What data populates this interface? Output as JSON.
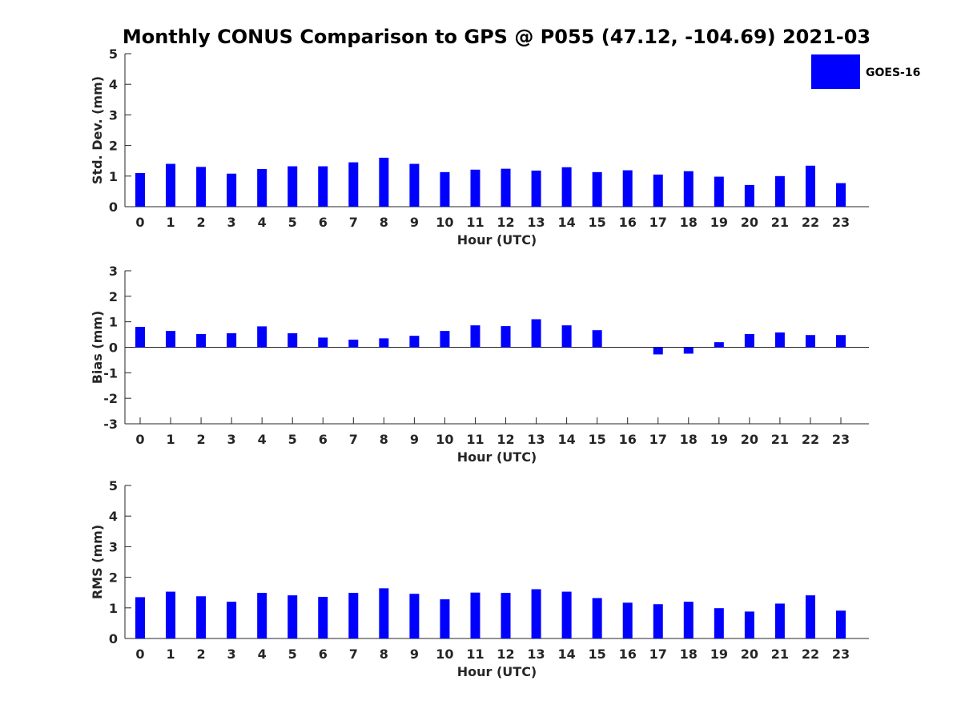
{
  "chart_data": {
    "type": "bar",
    "title": "Monthly CONUS Comparison to GPS @ P055 (47.12, -104.69) 2021-03",
    "bar_color": "#0000ff",
    "legend": {
      "label": "GOES-16",
      "placement": "top-right"
    },
    "categories": [
      "0",
      "1",
      "2",
      "3",
      "4",
      "5",
      "6",
      "7",
      "8",
      "9",
      "10",
      "11",
      "12",
      "13",
      "14",
      "15",
      "16",
      "17",
      "18",
      "19",
      "20",
      "21",
      "22",
      "23"
    ],
    "panels": [
      {
        "id": "stddev",
        "xlabel": "Hour (UTC)",
        "ylabel": "Std. Dev. (mm)",
        "ylim": [
          0,
          5
        ],
        "yticks": [
          0,
          1,
          2,
          3,
          4,
          5
        ],
        "values": [
          1.1,
          1.4,
          1.3,
          1.08,
          1.23,
          1.32,
          1.32,
          1.45,
          1.6,
          1.4,
          1.13,
          1.21,
          1.24,
          1.18,
          1.29,
          1.13,
          1.19,
          1.05,
          1.16,
          0.98,
          0.71,
          1.0,
          1.34,
          0.77
        ]
      },
      {
        "id": "bias",
        "xlabel": "Hour (UTC)",
        "ylabel": "Bias (mm)",
        "ylim": [
          -3,
          3
        ],
        "yticks": [
          -3,
          -2,
          -1,
          0,
          1,
          2,
          3
        ],
        "values": [
          0.8,
          0.64,
          0.52,
          0.55,
          0.82,
          0.55,
          0.38,
          0.3,
          0.35,
          0.45,
          0.64,
          0.86,
          0.83,
          1.1,
          0.86,
          0.67,
          0.0,
          -0.28,
          -0.25,
          0.2,
          0.52,
          0.58,
          0.48,
          0.48
        ]
      },
      {
        "id": "rms",
        "xlabel": "Hour (UTC)",
        "ylabel": "RMS (mm)",
        "ylim": [
          0,
          5
        ],
        "yticks": [
          0,
          1,
          2,
          3,
          4,
          5
        ],
        "values": [
          1.35,
          1.53,
          1.38,
          1.2,
          1.49,
          1.41,
          1.36,
          1.49,
          1.64,
          1.46,
          1.28,
          1.5,
          1.49,
          1.61,
          1.53,
          1.32,
          1.17,
          1.12,
          1.2,
          0.99,
          0.88,
          1.14,
          1.41,
          0.91
        ]
      }
    ]
  }
}
